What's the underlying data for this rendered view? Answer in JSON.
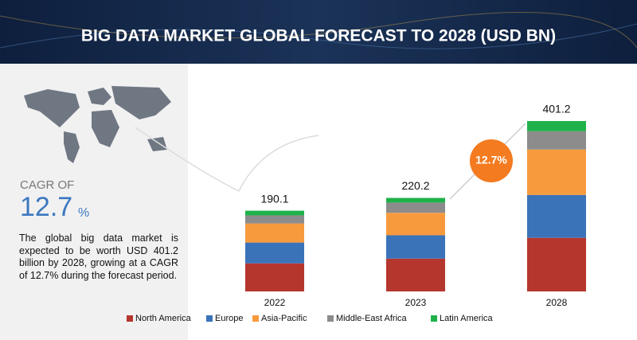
{
  "chart_data": {
    "type": "stacked_bar",
    "title": "BIG DATA MARKET GLOBAL FORECAST TO 2028 (USD BN)",
    "categories": [
      "2022",
      "2023",
      "2028"
    ],
    "totals": [
      190.1,
      220.2,
      401.2
    ],
    "series": [
      {
        "name": "North America",
        "color": "#b5362d",
        "values": [
          66.1,
          77.2,
          126.2
        ]
      },
      {
        "name": "Europe",
        "color": "#3b73b9",
        "values": [
          49,
          55,
          101
        ]
      },
      {
        "name": "Asia-Pacific",
        "color": "#f79a3e",
        "values": [
          45,
          53,
          107
        ]
      },
      {
        "name": "Middle-East Africa",
        "color": "#8c8c8c",
        "values": [
          19,
          24,
          43
        ]
      },
      {
        "name": "Latin America",
        "color": "#1fb24a",
        "values": [
          11,
          11,
          24
        ]
      }
    ],
    "annotation": "12.7%",
    "cagr_heading": "CAGR OF",
    "cagr_value": 12.7,
    "cagr_unit": "%",
    "description": "The global big data market is expected to be worth USD 401.2 billion by 2028, growing at a CAGR of 12.7% during the forecast period."
  }
}
